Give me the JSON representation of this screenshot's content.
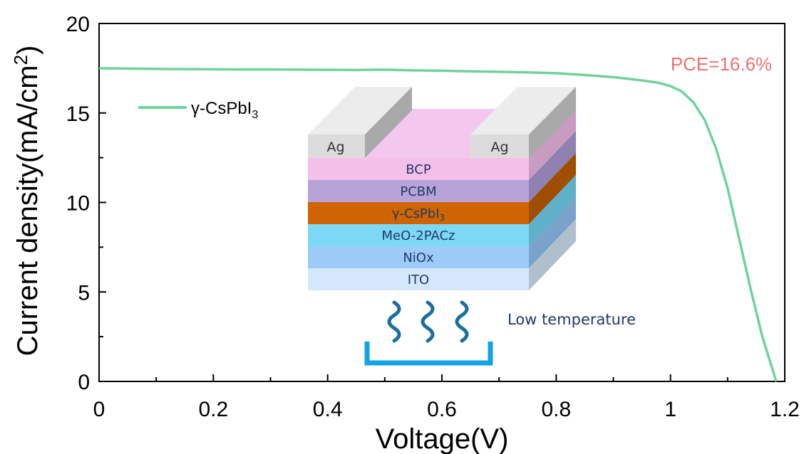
{
  "chart_data": {
    "type": "line",
    "xlabel": "Voltage(V)",
    "ylabel": "Current density(mA/cm²)",
    "xlim": [
      0,
      1.2
    ],
    "ylim": [
      0,
      20
    ],
    "x_ticks": [
      "0",
      "0.2",
      "0.4",
      "0.6",
      "0.8",
      "1",
      "1.2"
    ],
    "y_ticks": [
      "0",
      "5",
      "10",
      "15",
      "20"
    ],
    "grid": false,
    "legend_position": "top-left",
    "series": [
      {
        "name": "γ-CsPbI3",
        "color": "#6fd39a",
        "points": [
          [
            0,
            17.5
          ],
          [
            0.05,
            17.48
          ],
          [
            0.1,
            17.46
          ],
          [
            0.15,
            17.45
          ],
          [
            0.2,
            17.44
          ],
          [
            0.25,
            17.43
          ],
          [
            0.3,
            17.43
          ],
          [
            0.35,
            17.42
          ],
          [
            0.4,
            17.41
          ],
          [
            0.45,
            17.4
          ],
          [
            0.5,
            17.42
          ],
          [
            0.55,
            17.38
          ],
          [
            0.6,
            17.36
          ],
          [
            0.65,
            17.33
          ],
          [
            0.7,
            17.3
          ],
          [
            0.75,
            17.27
          ],
          [
            0.8,
            17.22
          ],
          [
            0.85,
            17.12
          ],
          [
            0.9,
            17.0
          ],
          [
            0.95,
            16.82
          ],
          [
            0.98,
            16.68
          ],
          [
            1.0,
            16.5
          ],
          [
            1.02,
            16.2
          ],
          [
            1.04,
            15.6
          ],
          [
            1.06,
            14.6
          ],
          [
            1.08,
            13.0
          ],
          [
            1.1,
            10.8
          ],
          [
            1.12,
            8.0
          ],
          [
            1.14,
            5.2
          ],
          [
            1.16,
            2.6
          ],
          [
            1.185,
            0
          ]
        ]
      }
    ],
    "annotations": {
      "pce": "PCE=16.6%",
      "pce_color": "#f07070"
    }
  },
  "legend": {
    "label_main": "γ-CsPbI",
    "label_sub": "3"
  },
  "inset": {
    "electrode_left": "Ag",
    "electrode_right": "Ag",
    "layers": [
      {
        "label": "BCP",
        "color": "#f4c0ea",
        "side": "#c79cc0"
      },
      {
        "label": "PCBM",
        "color": "#b8a3d9",
        "side": "#9081b3"
      },
      {
        "label": "γ-CsPbI",
        "sub": "3",
        "color": "#cf6400",
        "side": "#a04e00"
      },
      {
        "label": "MeO-2PACz",
        "color": "#7dd8f5",
        "side": "#5fb0c9"
      },
      {
        "label": "NiOx",
        "color": "#9dcbf8",
        "side": "#7aa3cc"
      },
      {
        "label": "ITO",
        "color": "#d5e8fb",
        "side": "#b0bfcc"
      }
    ],
    "heat_label": "Low temperature",
    "heat_color": "#1a6f9e",
    "plate_color": "#11a3e3",
    "text_color": "#1f3a68"
  }
}
